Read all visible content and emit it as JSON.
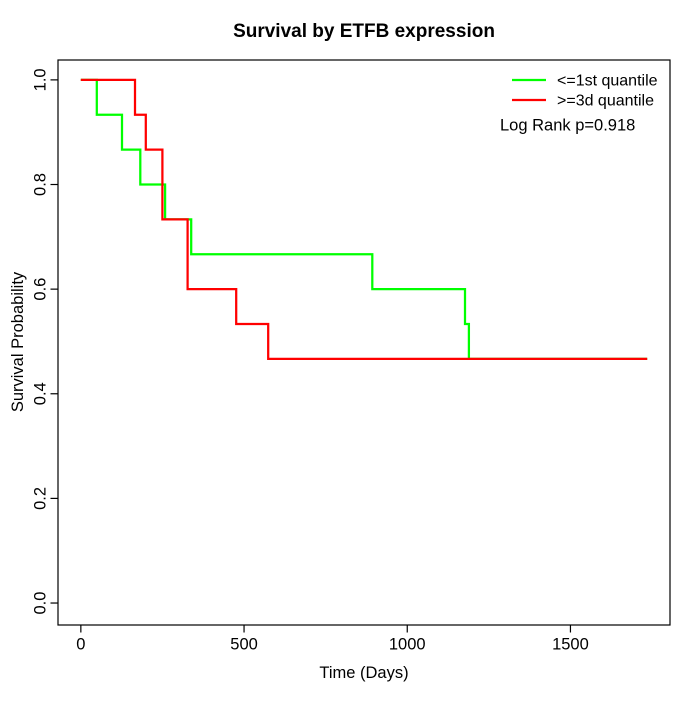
{
  "chart_data": {
    "type": "line",
    "subtype": "kaplan-meier-step",
    "title": "Survival by ETFB expression",
    "xlabel": "Time (Days)",
    "ylabel": "Survival Probability",
    "xlim": [
      -70,
      1805
    ],
    "ylim": [
      -0.042,
      1.038
    ],
    "grid": false,
    "frame_box": true,
    "x_ticks": {
      "values": [
        0,
        500,
        1000,
        1500
      ],
      "labels": [
        "0",
        "500",
        "1000",
        "1500"
      ]
    },
    "y_ticks": {
      "values": [
        0.0,
        0.2,
        0.4,
        0.6,
        0.8,
        1.0
      ],
      "labels": [
        "0.0",
        "0.2",
        "0.4",
        "0.6",
        "0.8",
        "1.0"
      ]
    },
    "legend": {
      "position": "top-right",
      "entries": [
        {
          "label": "<=1st quantile",
          "color": "#00ff00"
        },
        {
          "label": ">=3d quantile",
          "color": "#ff0000"
        }
      ]
    },
    "annotation": "Log Rank p=0.918",
    "series": [
      {
        "name": "<=1st quantile",
        "color": "#00ff00",
        "end_time": 1735,
        "steps": [
          [
            0,
            1.0
          ],
          [
            49,
            0.9333
          ],
          [
            126,
            0.8667
          ],
          [
            182,
            0.8
          ],
          [
            258,
            0.7333
          ],
          [
            338,
            0.6667
          ],
          [
            893,
            0.6
          ],
          [
            1177,
            0.5333
          ],
          [
            1189,
            0.4667
          ]
        ]
      },
      {
        "name": ">=3d quantile",
        "color": "#ff0000",
        "end_time": 1735,
        "steps": [
          [
            0,
            1.0
          ],
          [
            166,
            0.9333
          ],
          [
            199,
            0.8667
          ],
          [
            250,
            0.7333
          ],
          [
            327,
            0.6
          ],
          [
            476,
            0.5333
          ],
          [
            574,
            0.4667
          ]
        ]
      }
    ]
  }
}
